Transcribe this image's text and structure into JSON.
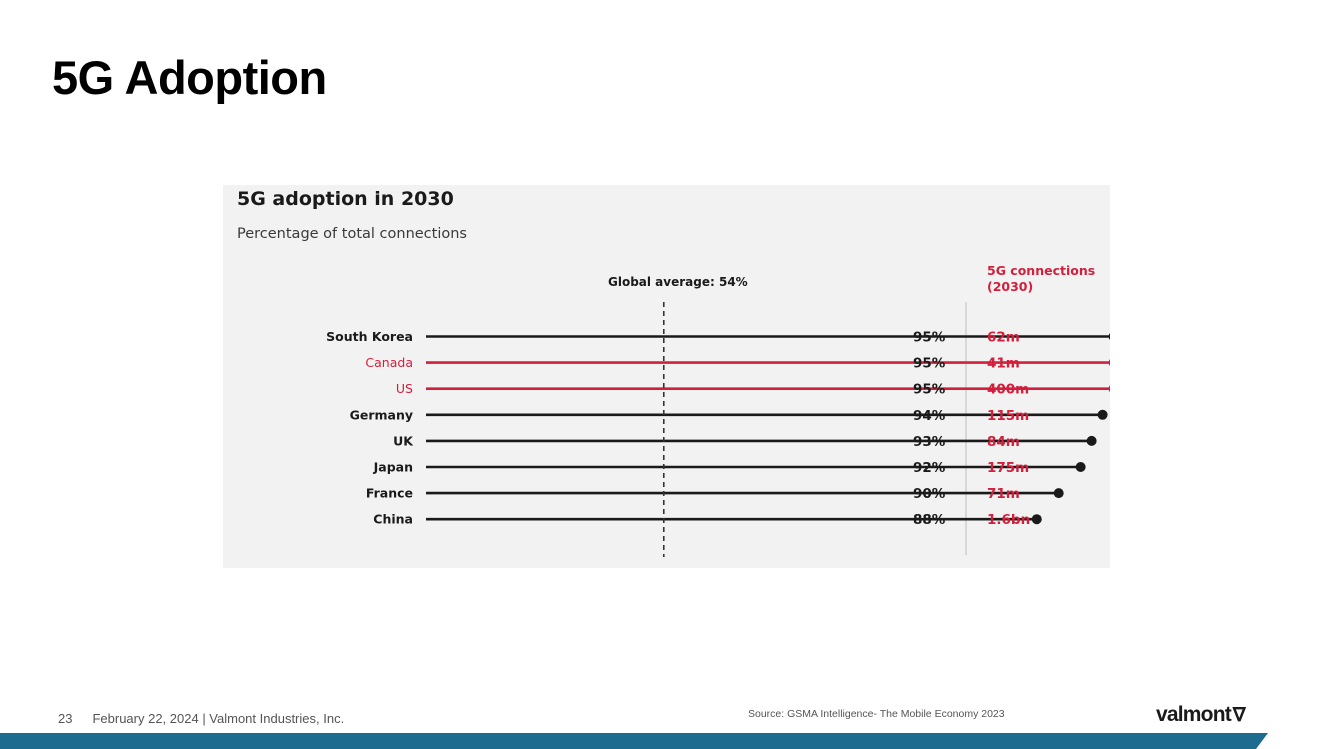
{
  "slide": {
    "title": "5G Adoption",
    "page_number": "23",
    "footer_text": "February 22, 2024  | Valmont Industries, Inc.",
    "source": "Source: GSMA Intelligence- The Mobile Economy 2023",
    "logo_text": "valmont",
    "logo_icon": "valmont-v-mark-icon"
  },
  "chart_data": {
    "type": "dot-plot",
    "title": "5G adoption in 2030",
    "subtitle": "Percentage of total connections",
    "reference_line": {
      "label": "Global average: 54%",
      "value": 54
    },
    "connections_header": [
      "5G connections",
      "(2030)"
    ],
    "xlim": [
      0,
      100
    ],
    "grid": false,
    "categories": [
      "South Korea",
      "Canada",
      "US",
      "Germany",
      "UK",
      "Japan",
      "France",
      "China"
    ],
    "values": [
      95,
      95,
      95,
      94,
      93,
      92,
      90,
      88
    ],
    "value_labels": [
      "95%",
      "95%",
      "95%",
      "94%",
      "93%",
      "92%",
      "90%",
      "88%"
    ],
    "connections": [
      "62m",
      "41m",
      "400m",
      "115m",
      "84m",
      "175m",
      "71m",
      "1.6bn"
    ],
    "highlighted": [
      false,
      true,
      true,
      false,
      false,
      false,
      false,
      false
    ],
    "colors": {
      "default": "#1a1a1a",
      "highlight": "#d21f3c",
      "track": "#d6d6d6",
      "divider": "#cfcfcf"
    }
  }
}
